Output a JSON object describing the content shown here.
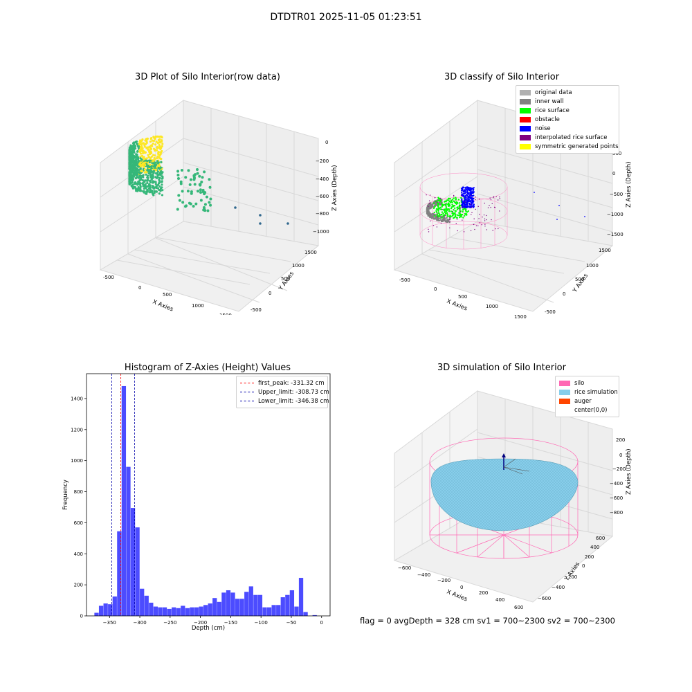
{
  "figure": {
    "suptitle": "DTDTR01 2025-11-05 01:23:51",
    "status_line": "flag = 0     avgDepth = 328 cm  sv1 = 700~2300  sv2 = 700~2300"
  },
  "chart_data": [
    {
      "type": "scatter3d",
      "title": "3D Plot of Silo Interior(row data)",
      "xlabel": "X Axies",
      "ylabel": "Y Axies",
      "zlabel": "Z Axies (Depth)",
      "xticks": [
        "-500",
        "0",
        "500",
        "1000",
        "1500"
      ],
      "yticks": [
        "-500",
        "0",
        "500",
        "1000",
        "1500"
      ],
      "zticks": [
        "0",
        "−200",
        "−400",
        "−600",
        "−800",
        "−1000"
      ],
      "colormap": [
        "#31688e",
        "#35b779",
        "#fde725"
      ]
    },
    {
      "type": "scatter3d",
      "title": "3D classify of Silo Interior",
      "xlabel": "X Axies",
      "ylabel": "Y Axies",
      "zlabel": "Z Axies (Depth)",
      "xticks": [
        "-500",
        "0",
        "500",
        "1000",
        "1500"
      ],
      "yticks": [
        "-500",
        "0",
        "500",
        "1000",
        "1500"
      ],
      "zticks": [
        "500",
        "0",
        "−500",
        "−1000",
        "−1500"
      ],
      "legend": [
        {
          "label": "original data",
          "color": "#b0b0b0"
        },
        {
          "label": "inner wall",
          "color": "#808080"
        },
        {
          "label": "rice surface",
          "color": "#00ff00"
        },
        {
          "label": "obstacle",
          "color": "#ff0000"
        },
        {
          "label": "noise",
          "color": "#0000ff"
        },
        {
          "label": "interpolated rice surface",
          "color": "#800080"
        },
        {
          "label": "symmetric generated points",
          "color": "#ffff00"
        }
      ],
      "legend_position": "upper-right"
    },
    {
      "type": "bar",
      "title": "Histogram of Z-Axies (Height) Values",
      "xlabel": "Depth (cm)",
      "ylabel": "Frequency",
      "bar_color": "#0000ff",
      "bin_width": 7.5,
      "bins": [
        {
          "x": -375,
          "v": 20
        },
        {
          "x": -367.5,
          "v": 65
        },
        {
          "x": -360,
          "v": 80
        },
        {
          "x": -352.5,
          "v": 75
        },
        {
          "x": -345,
          "v": 125
        },
        {
          "x": -337.5,
          "v": 545
        },
        {
          "x": -330,
          "v": 1480
        },
        {
          "x": -322.5,
          "v": 960
        },
        {
          "x": -315,
          "v": 695
        },
        {
          "x": -307.5,
          "v": 570
        },
        {
          "x": -300,
          "v": 175
        },
        {
          "x": -292.5,
          "v": 130
        },
        {
          "x": -285,
          "v": 85
        },
        {
          "x": -277.5,
          "v": 60
        },
        {
          "x": -270,
          "v": 55
        },
        {
          "x": -262.5,
          "v": 55
        },
        {
          "x": -255,
          "v": 45
        },
        {
          "x": -247.5,
          "v": 55
        },
        {
          "x": -240,
          "v": 50
        },
        {
          "x": -232.5,
          "v": 65
        },
        {
          "x": -225,
          "v": 50
        },
        {
          "x": -217.5,
          "v": 55
        },
        {
          "x": -210,
          "v": 55
        },
        {
          "x": -202.5,
          "v": 60
        },
        {
          "x": -195,
          "v": 70
        },
        {
          "x": -187.5,
          "v": 80
        },
        {
          "x": -180,
          "v": 115
        },
        {
          "x": -172.5,
          "v": 90
        },
        {
          "x": -165,
          "v": 150
        },
        {
          "x": -157.5,
          "v": 165
        },
        {
          "x": -150,
          "v": 150
        },
        {
          "x": -142.5,
          "v": 110
        },
        {
          "x": -135,
          "v": 110
        },
        {
          "x": -127.5,
          "v": 155
        },
        {
          "x": -120,
          "v": 190
        },
        {
          "x": -112.5,
          "v": 135
        },
        {
          "x": -105,
          "v": 135
        },
        {
          "x": -97.5,
          "v": 55
        },
        {
          "x": -90,
          "v": 55
        },
        {
          "x": -82.5,
          "v": 70
        },
        {
          "x": -75,
          "v": 70
        },
        {
          "x": -67.5,
          "v": 120
        },
        {
          "x": -60,
          "v": 135
        },
        {
          "x": -52.5,
          "v": 165
        },
        {
          "x": -45,
          "v": 60
        },
        {
          "x": -37.5,
          "v": 245
        },
        {
          "x": -30,
          "v": 25
        },
        {
          "x": -22.5,
          "v": 0
        },
        {
          "x": -15,
          "v": 5
        },
        {
          "x": -7.5,
          "v": 0
        }
      ],
      "xlim": [
        -388,
        14
      ],
      "ylim": [
        0,
        1560
      ],
      "xticks": [
        -350,
        -300,
        -250,
        -200,
        -150,
        -100,
        -50,
        0
      ],
      "xtick_labels": [
        "−350",
        "−300",
        "−250",
        "−200",
        "−150",
        "−100",
        "−50",
        "0"
      ],
      "yticks": [
        0,
        200,
        400,
        600,
        800,
        1000,
        1200,
        1400
      ],
      "vlines": [
        {
          "x": -331.32,
          "color": "#ff0000",
          "label": "first_peak: -331.32 cm"
        },
        {
          "x": -308.73,
          "color": "#0000aa",
          "label": "Upper_limit: -308.73 cm"
        },
        {
          "x": -346.38,
          "color": "#0000aa",
          "label": "Lower_limit: -346.38 cm"
        }
      ],
      "legend_position": "upper-right"
    },
    {
      "type": "surface3d",
      "title": "3D simulation of Silo Interior",
      "xlabel": "X Axies",
      "ylabel": "Y Axies",
      "zlabel": "Z Axies (Depth)",
      "xticks": [
        "−600",
        "−400",
        "−200",
        "0",
        "200",
        "400",
        "600"
      ],
      "yticks": [
        "−600",
        "−400",
        "−200",
        "0",
        "200",
        "400",
        "600"
      ],
      "zticks": [
        "200",
        "0",
        "−200",
        "−400",
        "−600",
        "−800"
      ],
      "legend": [
        {
          "label": "silo",
          "color": "#ff69b4"
        },
        {
          "label": "rice simulation",
          "color": "#87ceeb"
        },
        {
          "label": "auger",
          "color": "#ff4500"
        },
        {
          "label": "center(0,0)",
          "color": "#ffffff"
        }
      ],
      "legend_position": "upper-right"
    }
  ]
}
